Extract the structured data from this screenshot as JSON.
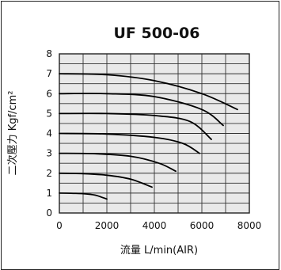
{
  "chart_data": {
    "type": "line",
    "title": "UF 500-06",
    "xlabel": "流量 L/min(AIR)",
    "ylabel": "二次壓力 Kgf/cm²",
    "xlim": [
      0,
      8000
    ],
    "ylim": [
      0,
      8
    ],
    "xticks": [
      0,
      2000,
      4000,
      6000,
      8000
    ],
    "yticks": [
      0,
      1,
      2,
      3,
      4,
      5,
      6,
      7,
      8
    ],
    "grid": true,
    "line_color": "#000000",
    "series": [
      {
        "values": [
          [
            0,
            1.0
          ],
          [
            500,
            0.99
          ],
          [
            1000,
            0.97
          ],
          [
            1500,
            0.9
          ],
          [
            2000,
            0.7
          ]
        ]
      },
      {
        "values": [
          [
            0,
            2.0
          ],
          [
            1000,
            1.98
          ],
          [
            2000,
            1.9
          ],
          [
            3000,
            1.7
          ],
          [
            3900,
            1.3
          ]
        ]
      },
      {
        "values": [
          [
            0,
            3.0
          ],
          [
            1500,
            2.98
          ],
          [
            3000,
            2.85
          ],
          [
            4200,
            2.5
          ],
          [
            4900,
            2.1
          ]
        ]
      },
      {
        "values": [
          [
            0,
            4.0
          ],
          [
            2000,
            3.97
          ],
          [
            4000,
            3.8
          ],
          [
            5200,
            3.5
          ],
          [
            5900,
            3.0
          ]
        ]
      },
      {
        "values": [
          [
            0,
            5.0
          ],
          [
            2000,
            5.0
          ],
          [
            4000,
            4.9
          ],
          [
            5500,
            4.6
          ],
          [
            6400,
            3.7
          ]
        ]
      },
      {
        "values": [
          [
            0,
            6.0
          ],
          [
            2000,
            6.0
          ],
          [
            4000,
            5.85
          ],
          [
            6000,
            5.2
          ],
          [
            6900,
            4.4
          ]
        ]
      },
      {
        "values": [
          [
            0,
            7.0
          ],
          [
            2000,
            6.95
          ],
          [
            4000,
            6.65
          ],
          [
            6000,
            6.0
          ],
          [
            7500,
            5.2
          ]
        ]
      }
    ]
  }
}
